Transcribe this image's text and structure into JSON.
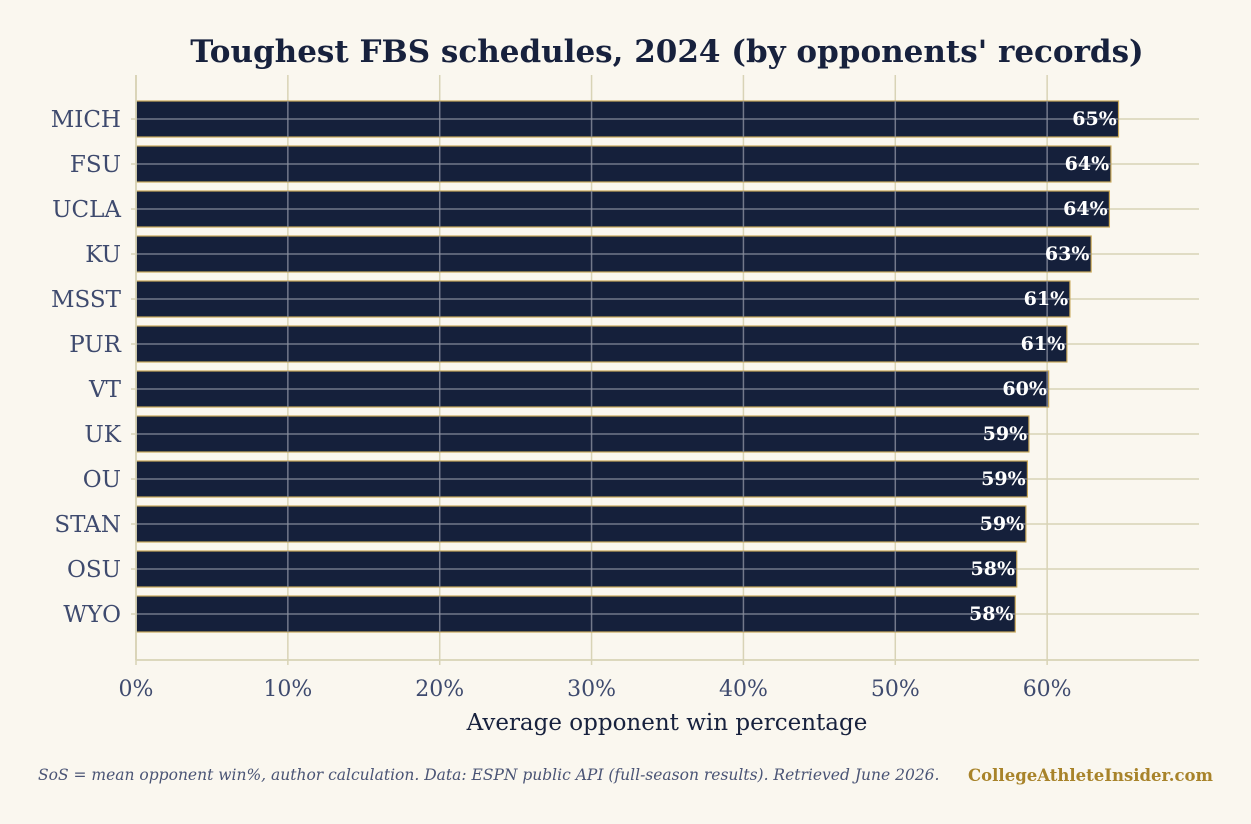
{
  "footer": {
    "note": "SoS = mean opponent win%, author calculation.  Data: ESPN public API (full-season results). Retrieved June 2026.",
    "brand": "CollegeAthleteInsider.com"
  },
  "colors": {
    "background": "#faf7ef",
    "bar": "#15203b",
    "bar_edge": "#c9a85a",
    "grid": "#d8d3b6",
    "title": "#17213d",
    "brand": "#a8832a"
  },
  "chart_data": {
    "type": "bar",
    "orientation": "horizontal",
    "title": "Toughest FBS schedules, 2024 (by opponents' records)",
    "xlabel": "Average opponent win percentage",
    "ylabel": "",
    "xlim": [
      0,
      70
    ],
    "xticks": [
      0,
      10,
      20,
      30,
      40,
      50,
      60
    ],
    "xtick_labels": [
      "0%",
      "10%",
      "20%",
      "30%",
      "40%",
      "50%",
      "60%"
    ],
    "grid": true,
    "categories": [
      "MICH",
      "FSU",
      "UCLA",
      "KU",
      "MSST",
      "PUR",
      "VT",
      "UK",
      "OU",
      "STAN",
      "OSU",
      "WYO"
    ],
    "values": [
      64.7,
      64.2,
      64.1,
      62.9,
      61.5,
      61.3,
      60.1,
      58.8,
      58.7,
      58.6,
      58.0,
      57.9
    ],
    "value_labels": [
      "65%",
      "64%",
      "64%",
      "63%",
      "61%",
      "61%",
      "60%",
      "59%",
      "59%",
      "59%",
      "58%",
      "58%"
    ]
  }
}
